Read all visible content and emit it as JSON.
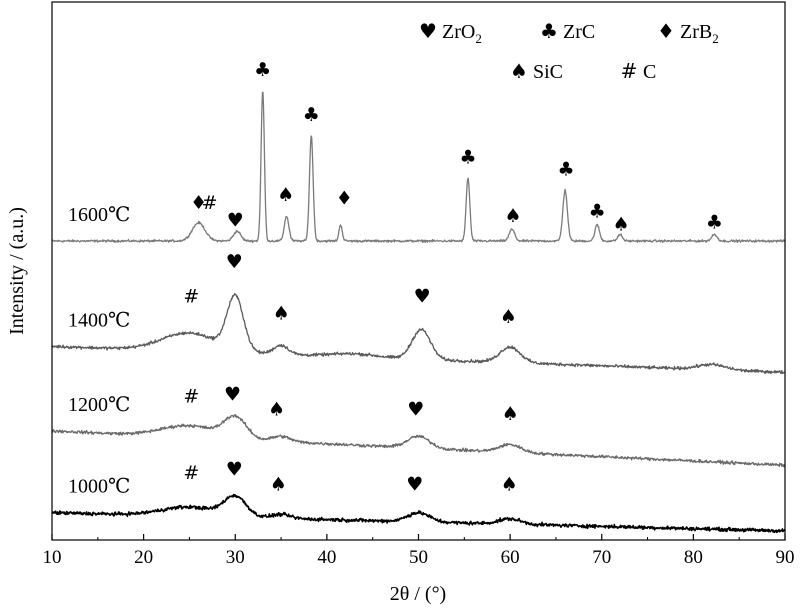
{
  "chart_data": {
    "type": "line",
    "xlabel": "2θ / (°)",
    "ylabel": "Intensity / (a.u.)",
    "xlim": [
      10,
      90
    ],
    "x_ticks": [
      10,
      20,
      30,
      40,
      50,
      60,
      70,
      80,
      90
    ],
    "legend": {
      "placement": "top-right",
      "entries": [
        {
          "symbol": "♥",
          "phase": "ZrO",
          "sub": "2"
        },
        {
          "symbol": "♣",
          "phase": "ZrC",
          "sub": ""
        },
        {
          "symbol": "♦",
          "phase": "ZrB",
          "sub": "2"
        },
        {
          "symbol": "♠",
          "phase": "SiC",
          "sub": ""
        },
        {
          "symbol": "#",
          "phase": "C",
          "sub": ""
        }
      ]
    },
    "series": [
      {
        "name": "1600℃",
        "color": "#7a7a7a",
        "baseline_start": 0.0,
        "baseline_end": 0.0,
        "noise": 0.025,
        "peaks": [
          {
            "x": 26.0,
            "h": 0.28,
            "w": 0.7
          },
          {
            "x": 30.2,
            "h": 0.15,
            "w": 0.4
          },
          {
            "x": 33.0,
            "h": 2.31,
            "w": 0.18
          },
          {
            "x": 35.6,
            "h": 0.38,
            "w": 0.25
          },
          {
            "x": 38.3,
            "h": 1.62,
            "w": 0.2
          },
          {
            "x": 41.5,
            "h": 0.25,
            "w": 0.18
          },
          {
            "x": 55.4,
            "h": 0.97,
            "w": 0.2
          },
          {
            "x": 60.2,
            "h": 0.18,
            "w": 0.3
          },
          {
            "x": 66.0,
            "h": 0.78,
            "w": 0.25
          },
          {
            "x": 69.5,
            "h": 0.25,
            "w": 0.25
          },
          {
            "x": 72.0,
            "h": 0.1,
            "w": 0.25
          },
          {
            "x": 82.3,
            "h": 0.1,
            "w": 0.3
          }
        ],
        "markers": [
          {
            "symbol": "♦",
            "x": 26.0,
            "y": 0.58
          },
          {
            "symbol": "#",
            "x": 27.2,
            "y": 0.58
          },
          {
            "symbol": "♥",
            "x": 30.0,
            "y": 0.31
          },
          {
            "symbol": "♣",
            "x": 33.0,
            "y": 2.62
          },
          {
            "symbol": "♠",
            "x": 35.5,
            "y": 0.7
          },
          {
            "symbol": "♣",
            "x": 38.3,
            "y": 1.93
          },
          {
            "symbol": "♦",
            "x": 41.9,
            "y": 0.65
          },
          {
            "symbol": "♣",
            "x": 55.4,
            "y": 1.28
          },
          {
            "symbol": "♠",
            "x": 60.3,
            "y": 0.38
          },
          {
            "symbol": "♣",
            "x": 66.1,
            "y": 1.09
          },
          {
            "symbol": "♣",
            "x": 69.5,
            "y": 0.45
          },
          {
            "symbol": "♠",
            "x": 72.1,
            "y": 0.25
          },
          {
            "symbol": "♣",
            "x": 82.3,
            "y": 0.28
          }
        ]
      },
      {
        "name": "1400℃",
        "color": "#5a5a5a",
        "baseline_start": -1.62,
        "baseline_end": -2.02,
        "noise": 0.035,
        "peaks": [
          {
            "x": 25.0,
            "h": 0.28,
            "w": 3.0
          },
          {
            "x": 30.0,
            "h": 0.82,
            "w": 0.9
          },
          {
            "x": 35.0,
            "h": 0.14,
            "w": 0.8
          },
          {
            "x": 43.0,
            "h": 0.05,
            "w": 2.5
          },
          {
            "x": 50.3,
            "h": 0.46,
            "w": 1.0
          },
          {
            "x": 60.0,
            "h": 0.24,
            "w": 1.1
          },
          {
            "x": 82.0,
            "h": 0.08,
            "w": 1.5
          }
        ],
        "markers": [
          {
            "symbol": "#",
            "x": 25.2,
            "y": -0.86
          },
          {
            "symbol": "♥",
            "x": 29.9,
            "y": -0.33
          },
          {
            "symbol": "♠",
            "x": 35.0,
            "y": -1.12
          },
          {
            "symbol": "♥",
            "x": 50.4,
            "y": -0.86
          },
          {
            "symbol": "♠",
            "x": 59.8,
            "y": -1.18
          }
        ]
      },
      {
        "name": "1200℃",
        "color": "#6a6a6a",
        "baseline_start": -2.92,
        "baseline_end": -3.45,
        "noise": 0.035,
        "peaks": [
          {
            "x": 25.0,
            "h": 0.18,
            "w": 3.0
          },
          {
            "x": 30.0,
            "h": 0.32,
            "w": 1.2
          },
          {
            "x": 35.0,
            "h": 0.08,
            "w": 1.0
          },
          {
            "x": 50.0,
            "h": 0.18,
            "w": 1.2
          },
          {
            "x": 60.0,
            "h": 0.12,
            "w": 1.2
          }
        ],
        "markers": [
          {
            "symbol": "#",
            "x": 25.2,
            "y": -2.4
          },
          {
            "symbol": "♥",
            "x": 29.7,
            "y": -2.37
          },
          {
            "symbol": "♠",
            "x": 34.5,
            "y": -2.6
          },
          {
            "symbol": "♥",
            "x": 49.7,
            "y": -2.6
          },
          {
            "symbol": "♠",
            "x": 60.0,
            "y": -2.67
          }
        ]
      },
      {
        "name": "1000℃",
        "color": "#000000",
        "baseline_start": -4.18,
        "baseline_end": -4.46,
        "noise": 0.04,
        "peaks": [
          {
            "x": 25.0,
            "h": 0.14,
            "w": 3.0
          },
          {
            "x": 30.0,
            "h": 0.3,
            "w": 1.2
          },
          {
            "x": 35.0,
            "h": 0.06,
            "w": 1.0
          },
          {
            "x": 50.0,
            "h": 0.14,
            "w": 1.2
          },
          {
            "x": 60.0,
            "h": 0.08,
            "w": 1.2
          }
        ],
        "markers": [
          {
            "symbol": "#",
            "x": 25.2,
            "y": -3.58
          },
          {
            "symbol": "♥",
            "x": 29.9,
            "y": -3.52
          },
          {
            "symbol": "♠",
            "x": 34.7,
            "y": -3.75
          },
          {
            "symbol": "♥",
            "x": 49.6,
            "y": -3.75
          },
          {
            "symbol": "♠",
            "x": 59.9,
            "y": -3.75
          }
        ]
      }
    ]
  }
}
